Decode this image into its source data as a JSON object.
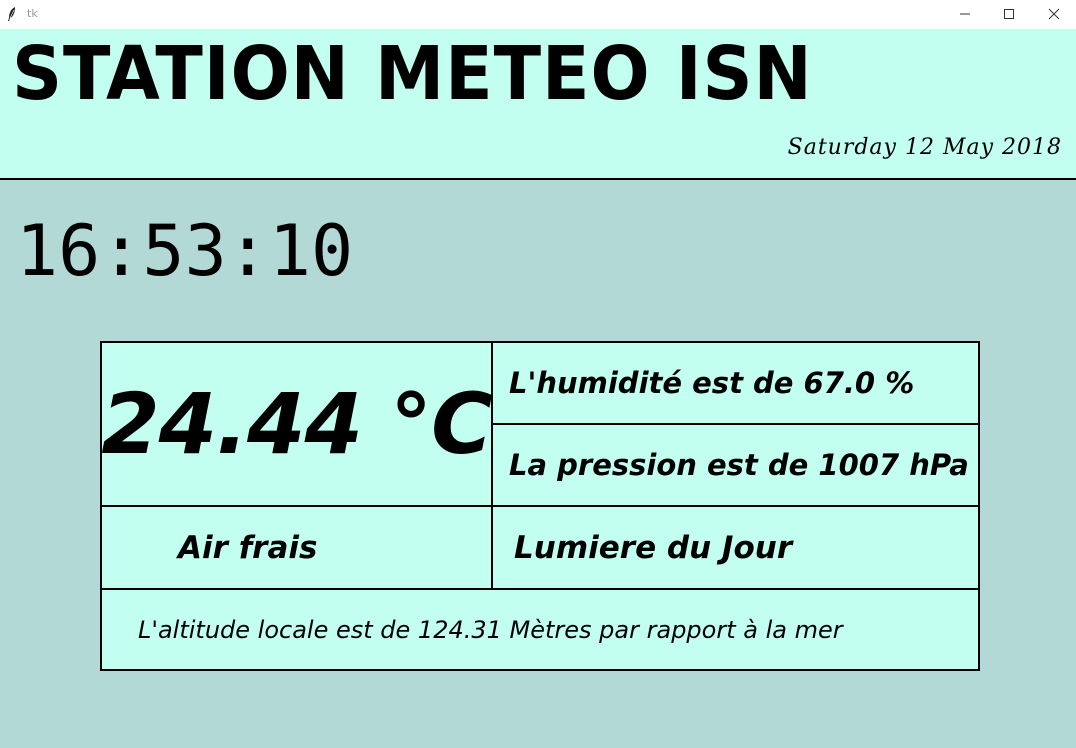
{
  "window": {
    "title": "tk",
    "icons": {
      "app": "feather-icon",
      "minimize": "minimize-icon",
      "maximize": "maximize-icon",
      "close": "close-icon"
    }
  },
  "header": {
    "title": "STATION METEO ISN",
    "date": "Saturday 12 May 2018"
  },
  "clock": {
    "time": "16:53:10"
  },
  "readings": {
    "temperature": "24.44 °C",
    "humidity": "L'humidité est de 67.0 %",
    "pressure": "La pression est de 1007 hPa",
    "air": "Air frais",
    "light": "Lumiere du Jour",
    "altitude": "L'altitude locale est de 124.31 Mètres par rapport à la mer"
  },
  "colors": {
    "header_bg": "#c3fff0",
    "body_bg": "#b3d9d7",
    "panel_bg": "#c3fff0",
    "border": "#000000"
  }
}
